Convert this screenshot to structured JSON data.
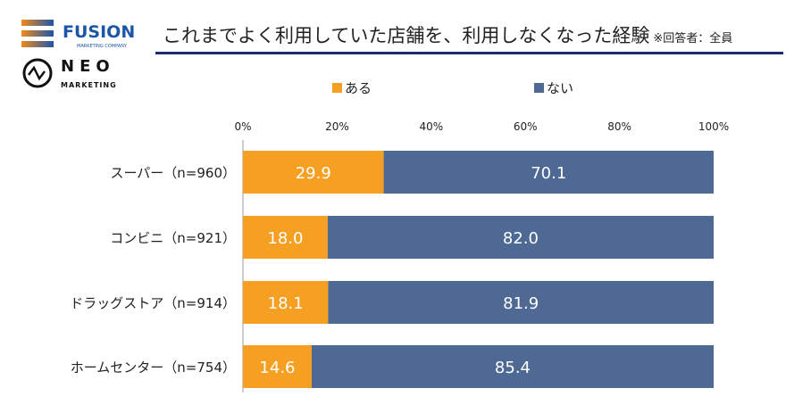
{
  "logos": {
    "fusion": "FUSION",
    "fusion_sub": "MARKETING COMPANY",
    "neo": "NEO",
    "neo_sub": "MARKETING"
  },
  "header": {
    "title": "これまでよく利用していた店舗を、利用しなくなった経験",
    "note": "※回答者：全員"
  },
  "chart_data": {
    "type": "bar",
    "stacked": true,
    "orientation": "horizontal",
    "title": "これまでよく利用していた店舗を、利用しなくなった経験",
    "categories": [
      "スーパー（n=960）",
      "コンビニ（n=921）",
      "ドラッグストア（n=914）",
      "ホームセンター（n=754）"
    ],
    "series": [
      {
        "name": "ある",
        "color": "#F5A023",
        "values": [
          29.9,
          18.0,
          18.1,
          14.6
        ]
      },
      {
        "name": "ない",
        "color": "#4E6A94",
        "values": [
          70.1,
          82.0,
          81.9,
          85.4
        ]
      }
    ],
    "xlim": [
      0,
      100
    ],
    "xticks": [
      "0%",
      "20%",
      "40%",
      "60%",
      "80%",
      "100%"
    ],
    "legend_position": "top"
  }
}
